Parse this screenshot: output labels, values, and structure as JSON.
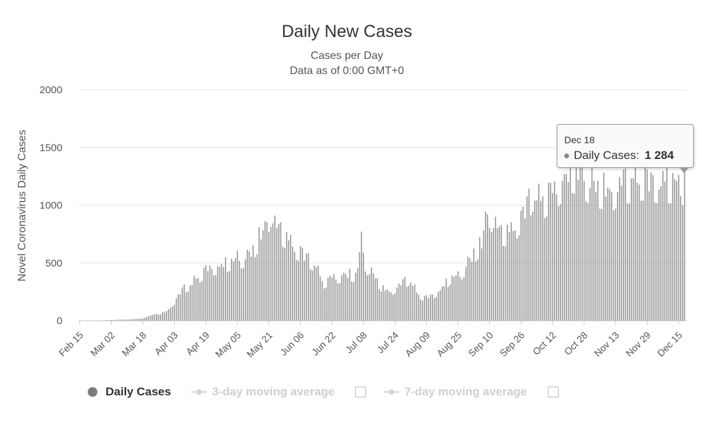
{
  "chart_data": {
    "type": "bar",
    "title": "Daily New Cases",
    "subtitle": [
      "Cases per Day",
      "Data as of 0:00 GMT+0"
    ],
    "xlabel": "",
    "ylabel": "Novel Coronavirus Daily Cases",
    "ylim": [
      0,
      2000
    ],
    "yticks": [
      0,
      500,
      1000,
      1500,
      2000
    ],
    "xtick_labels": [
      "Feb 15",
      "Mar 02",
      "Mar 18",
      "Apr 03",
      "Apr 19",
      "May 05",
      "May 21",
      "Jun 06",
      "Jun 22",
      "Jul 08",
      "Jul 24",
      "Aug 09",
      "Aug 25",
      "Sep 10",
      "Sep 26",
      "Oct 12",
      "Oct 28",
      "Nov 13",
      "Nov 29",
      "Dec 15"
    ],
    "grid": true,
    "bar_color": "#959595",
    "series": [
      {
        "name": "Daily Cases",
        "start_date": "Feb 15",
        "end_date": "Dec 18",
        "anchors": [
          [
            "Feb 15",
            0
          ],
          [
            "Feb 25",
            2
          ],
          [
            "Mar 05",
            8
          ],
          [
            "Mar 12",
            12
          ],
          [
            "Mar 18",
            20
          ],
          [
            "Mar 24",
            55
          ],
          [
            "Mar 30",
            80
          ],
          [
            "Apr 03",
            170
          ],
          [
            "Apr 07",
            280
          ],
          [
            "Apr 12",
            330
          ],
          [
            "Apr 17",
            420
          ],
          [
            "Apr 21",
            470
          ],
          [
            "Apr 27",
            490
          ],
          [
            "May 01",
            525
          ],
          [
            "May 06",
            550
          ],
          [
            "May 10",
            560
          ],
          [
            "May 13",
            640
          ],
          [
            "May 17",
            770
          ],
          [
            "May 20",
            880
          ],
          [
            "May 22",
            990
          ],
          [
            "May 25",
            820
          ],
          [
            "May 29",
            770
          ],
          [
            "Jun 01",
            680
          ],
          [
            "Jun 06",
            620
          ],
          [
            "Jun 10",
            560
          ],
          [
            "Jun 14",
            500
          ],
          [
            "Jun 17",
            330
          ],
          [
            "Jun 22",
            380
          ],
          [
            "Jun 27",
            400
          ],
          [
            "Jul 01",
            420
          ],
          [
            "Jul 04",
            400
          ],
          [
            "Jul 07",
            700
          ],
          [
            "Jul 09",
            520
          ],
          [
            "Jul 11",
            440
          ],
          [
            "Jul 15",
            360
          ],
          [
            "Jul 18",
            280
          ],
          [
            "Jul 22",
            260
          ],
          [
            "Jul 27",
            330
          ],
          [
            "Jul 31",
            370
          ],
          [
            "Aug 04",
            250
          ],
          [
            "Aug 08",
            200
          ],
          [
            "Aug 13",
            240
          ],
          [
            "Aug 17",
            290
          ],
          [
            "Aug 21",
            380
          ],
          [
            "Aug 25",
            390
          ],
          [
            "Aug 29",
            480
          ],
          [
            "Sep 02",
            600
          ],
          [
            "Sep 06",
            700
          ],
          [
            "Sep 08",
            900
          ],
          [
            "Sep 10",
            980
          ],
          [
            "Sep 14",
            800
          ],
          [
            "Sep 20",
            780
          ],
          [
            "Sep 24",
            870
          ],
          [
            "Sep 28",
            1000
          ],
          [
            "Oct 02",
            1150
          ],
          [
            "Oct 06",
            1050
          ],
          [
            "Oct 12",
            1150
          ],
          [
            "Oct 17",
            1250
          ],
          [
            "Oct 22",
            1350
          ],
          [
            "Oct 27",
            1300
          ],
          [
            "Nov 01",
            1200
          ],
          [
            "Nov 06",
            1180
          ],
          [
            "Nov 11",
            1150
          ],
          [
            "Nov 16",
            1230
          ],
          [
            "Nov 21",
            1240
          ],
          [
            "Nov 26",
            1270
          ],
          [
            "Dec 01",
            1260
          ],
          [
            "Dec 06",
            1230
          ],
          [
            "Dec 11",
            1240
          ],
          [
            "Dec 15",
            1180
          ],
          [
            "Dec 17",
            1220
          ],
          [
            "Dec 18",
            1284
          ]
        ]
      }
    ],
    "tooltip": {
      "date": "Dec 18",
      "label": "Daily Cases:",
      "value": "1 284"
    },
    "legend": [
      {
        "label": "Daily Cases",
        "active": true
      },
      {
        "label": "3-day moving average",
        "active": false
      },
      {
        "label": "7-day moving average",
        "active": false
      }
    ]
  }
}
